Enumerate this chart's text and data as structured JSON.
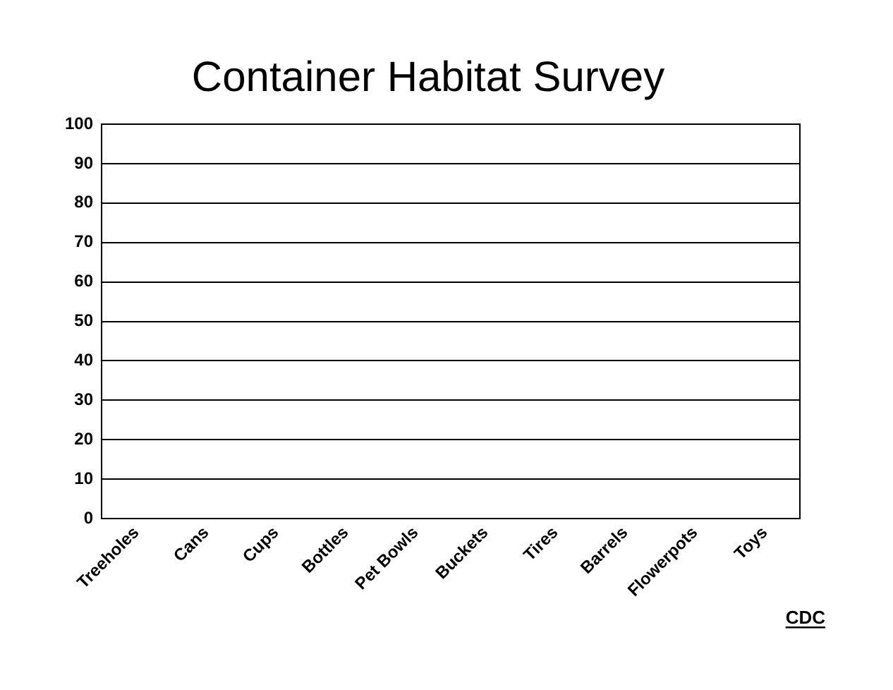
{
  "chart_data": {
    "type": "bar",
    "title": "Container Habitat Survey",
    "categories": [
      "Treeholes",
      "Cans",
      "Cups",
      "Bottles",
      "Pet Bowls",
      "Buckets",
      "Tires",
      "Barrels",
      "Flowerpots",
      "Toys"
    ],
    "values": [
      0,
      0,
      0,
      0,
      0,
      0,
      0,
      0,
      0,
      0
    ],
    "ylim": [
      0,
      100
    ],
    "yticks": [
      0,
      10,
      20,
      30,
      40,
      50,
      60,
      70,
      80,
      90,
      100
    ],
    "grid": "y",
    "annotations": [
      "CDC"
    ]
  }
}
